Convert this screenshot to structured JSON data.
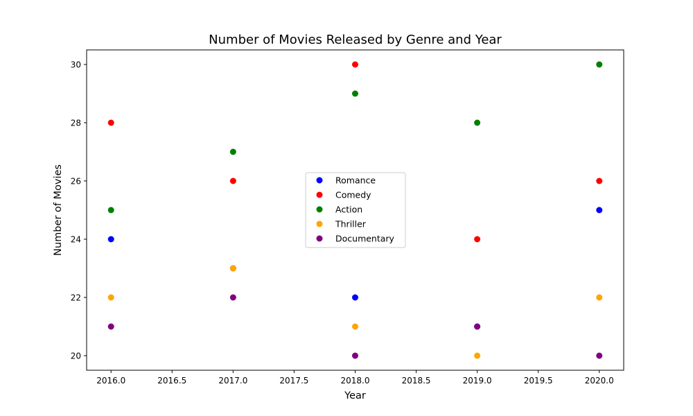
{
  "chart_data": {
    "type": "scatter",
    "title": "Number of Movies Released by Genre and Year",
    "xlabel": "Year",
    "ylabel": "Number of Movies",
    "xlim": [
      2015.8,
      2020.2
    ],
    "ylim": [
      19.5,
      30.5
    ],
    "xticks": [
      2016.0,
      2016.5,
      2017.0,
      2017.5,
      2018.0,
      2018.5,
      2019.0,
      2019.5,
      2020.0
    ],
    "xtick_labels": [
      "2016.0",
      "2016.5",
      "2017.0",
      "2017.5",
      "2018.0",
      "2018.5",
      "2019.0",
      "2019.5",
      "2020.0"
    ],
    "yticks": [
      20,
      22,
      24,
      26,
      28,
      30
    ],
    "ytick_labels": [
      "20",
      "22",
      "24",
      "26",
      "28",
      "30"
    ],
    "grid": false,
    "legend_position": "center",
    "x": [
      2016,
      2017,
      2018,
      2019,
      2020
    ],
    "series": [
      {
        "name": "Romance",
        "color": "#0000ff",
        "values": [
          24,
          23,
          22,
          21,
          25
        ]
      },
      {
        "name": "Comedy",
        "color": "#ff0000",
        "values": [
          28,
          26,
          30,
          24,
          26
        ]
      },
      {
        "name": "Action",
        "color": "#008000",
        "values": [
          25,
          27,
          29,
          28,
          30
        ]
      },
      {
        "name": "Thriller",
        "color": "#ffa500",
        "values": [
          22,
          23,
          21,
          20,
          22
        ]
      },
      {
        "name": "Documentary",
        "color": "#800080",
        "values": [
          21,
          22,
          20,
          21,
          20
        ]
      }
    ]
  }
}
